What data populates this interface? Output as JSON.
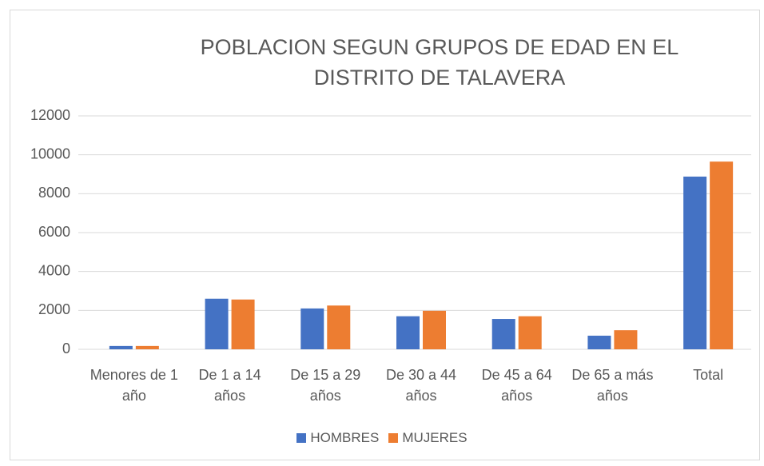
{
  "chart_data": {
    "type": "bar",
    "title": "POBLACION SEGUN GRUPOS DE EDAD EN EL DISTRITO DE TALAVERA",
    "categories": [
      "Menores de 1 año",
      "De 1 a 14 años",
      "De 15 a 29 años",
      "De 30 a 44 años",
      "De 45 a 64 años",
      "De 65 a más años",
      "Total"
    ],
    "series": [
      {
        "name": "HOMBRES",
        "color": "#4472c4",
        "values": [
          170,
          2600,
          2100,
          1700,
          1560,
          700,
          8880
        ]
      },
      {
        "name": "MUJERES",
        "color": "#ed7d31",
        "values": [
          170,
          2560,
          2250,
          1980,
          1700,
          980,
          9650
        ]
      }
    ],
    "ylim": [
      0,
      12000
    ],
    "yticks": [
      0,
      2000,
      4000,
      6000,
      8000,
      10000,
      12000
    ],
    "grid": true,
    "legend": "bottom"
  }
}
